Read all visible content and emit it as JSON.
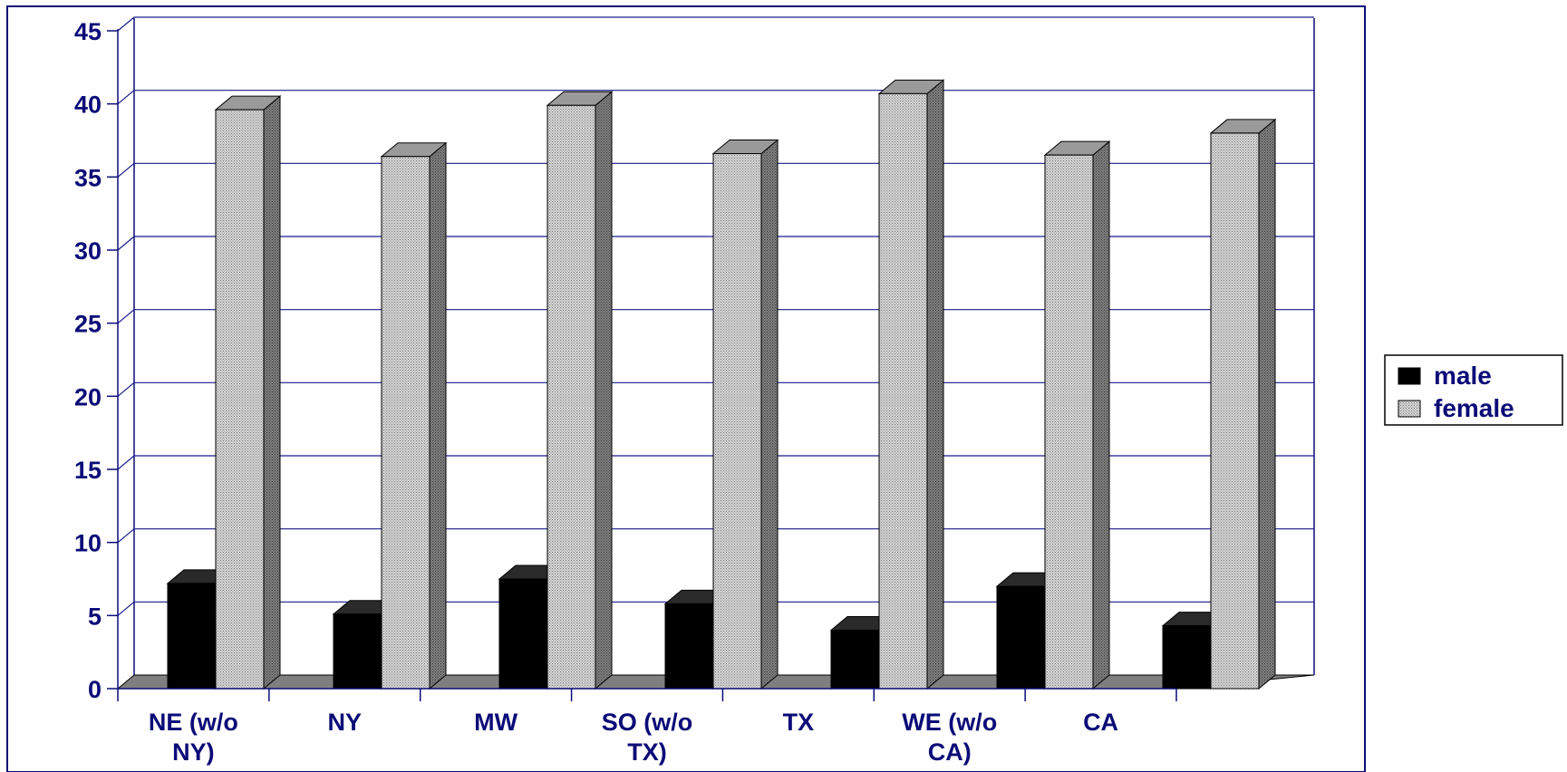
{
  "chart_data": {
    "type": "bar",
    "categories": [
      "NE (w/o NY)",
      "NY",
      "MW",
      "SO (w/o TX)",
      "TX",
      "WE (w/o CA)",
      "CA"
    ],
    "category_lines": [
      [
        "NE (w/o",
        "NY)"
      ],
      [
        "NY"
      ],
      [
        "MW"
      ],
      [
        "SO (w/o",
        "TX)"
      ],
      [
        "TX"
      ],
      [
        "WE (w/o",
        "CA)"
      ],
      [
        "CA"
      ]
    ],
    "series": [
      {
        "name": "male",
        "values": [
          7.2,
          5.1,
          7.5,
          5.8,
          4.0,
          7.0,
          4.3
        ],
        "color": "#000000"
      },
      {
        "name": "female",
        "values": [
          39.6,
          36.4,
          39.9,
          36.6,
          40.7,
          36.5,
          38.0
        ],
        "color": "#bdbdbd"
      }
    ],
    "ylim": [
      0,
      45
    ],
    "yticks": [
      0,
      5,
      10,
      15,
      20,
      25,
      30,
      35,
      40,
      45
    ],
    "grid": true,
    "legend": "right",
    "title": "",
    "xlabel": "",
    "ylabel": "",
    "colors": {
      "axis": "#0b0b78",
      "grid": "#1a1a8c",
      "floor": "#7f7f7f"
    }
  }
}
